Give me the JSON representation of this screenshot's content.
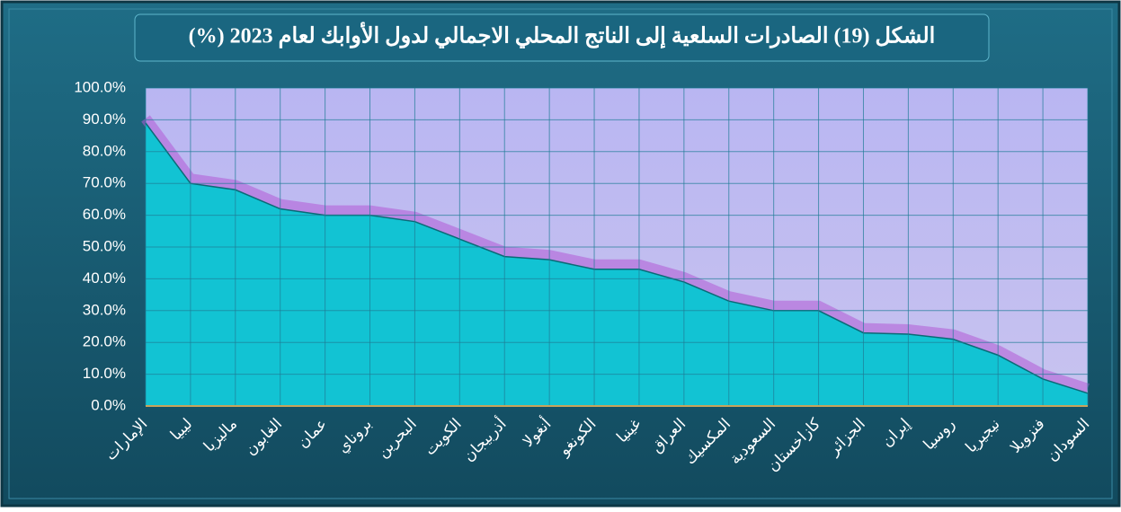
{
  "chart_data": {
    "type": "area",
    "title": "الشكل (19) الصادرات السلعية إلى الناتج المحلي الاجمالي لدول الأوابك لعام 2023 (%)",
    "categories": [
      "الإمارات",
      "ليبيا",
      "ماليزيا",
      "الغابون",
      "عمان",
      "بروناي",
      "البحرين",
      "الكويت",
      "أذربيجان",
      "أنغولا",
      "الكونغو",
      "غينيا",
      "العراق",
      "المكسيك",
      "السعودية",
      "كازاخستان",
      "الجزائر",
      "إيران",
      "روسيا",
      "نيجيريا",
      "فنزويلا",
      "السودان"
    ],
    "values": [
      89,
      70,
      68,
      62,
      60,
      60,
      58,
      52.5,
      47,
      46,
      43,
      43,
      39,
      33,
      30,
      30,
      23,
      22.6,
      21,
      16,
      8.5,
      4
    ],
    "color": "#12c3d3",
    "ylim": [
      0,
      100
    ],
    "yticks": [
      {
        "value": 0,
        "label": "0.0%"
      },
      {
        "value": 10,
        "label": "10.0%"
      },
      {
        "value": 20,
        "label": "20.0%"
      },
      {
        "value": 30,
        "label": "30.0%"
      },
      {
        "value": 40,
        "label": "40.0%"
      },
      {
        "value": 50,
        "label": "50.0%"
      },
      {
        "value": 60,
        "label": "60.0%"
      },
      {
        "value": 70,
        "label": "70.0%"
      },
      {
        "value": 80,
        "label": "80.0%"
      },
      {
        "value": 90,
        "label": "90.0%"
      },
      {
        "value": 100,
        "label": "100.0%"
      }
    ],
    "grid": true
  }
}
